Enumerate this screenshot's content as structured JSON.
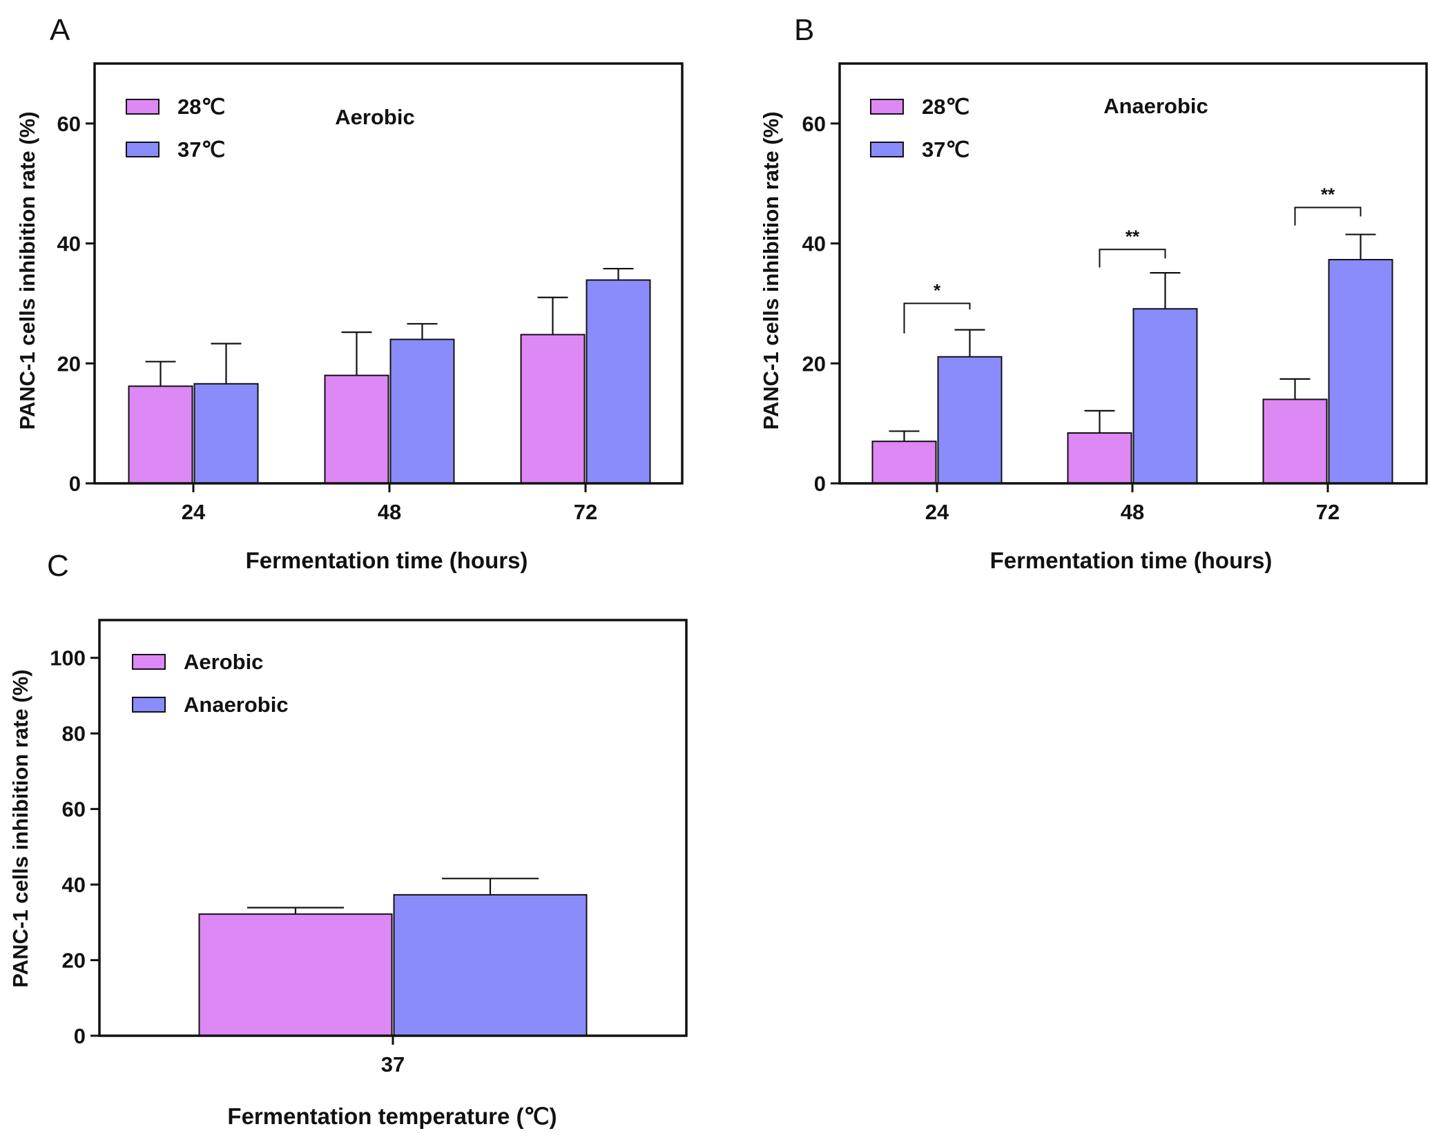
{
  "colors": {
    "pink": "#DD88F5",
    "blue": "#8A8CFC",
    "axis": "#111111"
  },
  "chart_data": [
    {
      "panel": "A",
      "type": "bar",
      "condition": "Aerobic",
      "categories": [
        "24",
        "48",
        "72"
      ],
      "series": [
        {
          "name": "28℃",
          "values": [
            16.2,
            18.0,
            24.8
          ],
          "errors": [
            4.1,
            7.2,
            6.2
          ]
        },
        {
          "name": "37℃",
          "values": [
            16.6,
            24.0,
            33.9
          ],
          "errors": [
            6.7,
            2.6,
            1.9
          ]
        }
      ],
      "xlabel": "Fermentation time (hours)",
      "ylabel": "PANC-1 cells inhibition rate (%)",
      "ylim": [
        0,
        70
      ],
      "yticks": [
        0,
        20,
        40,
        60
      ],
      "legend": "top-left",
      "significance": []
    },
    {
      "panel": "B",
      "type": "bar",
      "condition": "Anaerobic",
      "categories": [
        "24",
        "48",
        "72"
      ],
      "series": [
        {
          "name": "28℃",
          "values": [
            7.0,
            8.4,
            14.0
          ],
          "errors": [
            1.7,
            3.7,
            3.4
          ]
        },
        {
          "name": "37℃",
          "values": [
            21.1,
            29.1,
            37.3
          ],
          "errors": [
            4.5,
            6.0,
            4.2
          ]
        }
      ],
      "xlabel": "Fermentation time (hours)",
      "ylabel": "PANC-1 cells inhibition rate (%)",
      "ylim": [
        0,
        70
      ],
      "yticks": [
        0,
        20,
        40,
        60
      ],
      "legend": "top-left",
      "significance": [
        {
          "category": 0,
          "label": "*",
          "y": 30,
          "left_end": 25,
          "right_end": 29
        },
        {
          "category": 1,
          "label": "**",
          "y": 39,
          "left_end": 36,
          "right_end": 37.5
        },
        {
          "category": 2,
          "label": "**",
          "y": 46,
          "left_end": 43,
          "right_end": 44.5
        }
      ]
    },
    {
      "panel": "C",
      "type": "bar",
      "categories": [
        "37"
      ],
      "series": [
        {
          "name": "Aerobic",
          "values": [
            32.2
          ],
          "errors": [
            1.7
          ]
        },
        {
          "name": "Anaerobic",
          "values": [
            37.3
          ],
          "errors": [
            4.3
          ]
        }
      ],
      "xlabel": "Fermentation temperature (℃)",
      "ylabel": "PANC-1 cells inhibition rate (%)",
      "ylim": [
        0,
        110
      ],
      "yticks": [
        0,
        20,
        40,
        60,
        80,
        100
      ],
      "legend": "top-left",
      "significance": []
    }
  ]
}
